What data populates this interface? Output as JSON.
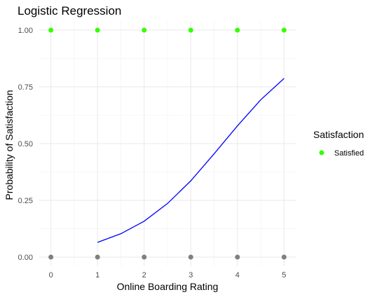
{
  "chart_data": {
    "type": "scatter",
    "title": "Logistic Regression",
    "xlabel": "Online Boarding Rating",
    "ylabel": "Probability of Satisfaction",
    "xlim": [
      -0.25,
      5.25
    ],
    "ylim": [
      -0.04,
      1.04
    ],
    "x_ticks": [
      0,
      1,
      2,
      3,
      4,
      5
    ],
    "x_tick_labels": [
      "0",
      "1",
      "2",
      "3",
      "4",
      "5"
    ],
    "y_ticks": [
      0,
      0.25,
      0.5,
      0.75,
      1
    ],
    "y_tick_labels": [
      "0.00",
      "0.25",
      "0.50",
      "0.75",
      "1.00"
    ],
    "grid": true,
    "legend": {
      "title": "Satisfaction",
      "position": "right",
      "entries": [
        {
          "label": "Satisfied",
          "color": "#33ff00"
        }
      ]
    },
    "series": [
      {
        "name": "Satisfied",
        "kind": "points",
        "color": "#33ff00",
        "points": [
          [
            0,
            1
          ],
          [
            1,
            1
          ],
          [
            2,
            1
          ],
          [
            3,
            1
          ],
          [
            4,
            1
          ],
          [
            5,
            1
          ]
        ]
      },
      {
        "kind": "points",
        "color": "#7f7f7f",
        "points": [
          [
            0,
            0
          ],
          [
            1,
            0
          ],
          [
            2,
            0
          ],
          [
            3,
            0
          ],
          [
            4,
            0
          ],
          [
            5,
            0
          ]
        ]
      },
      {
        "kind": "line",
        "color": "#0000ff",
        "points": [
          [
            1.0,
            0.065
          ],
          [
            1.5,
            0.103
          ],
          [
            2.0,
            0.158
          ],
          [
            2.5,
            0.236
          ],
          [
            3.0,
            0.336
          ],
          [
            3.5,
            0.455
          ],
          [
            4.0,
            0.578
          ],
          [
            4.5,
            0.693
          ],
          [
            5.0,
            0.787
          ]
        ]
      }
    ]
  }
}
